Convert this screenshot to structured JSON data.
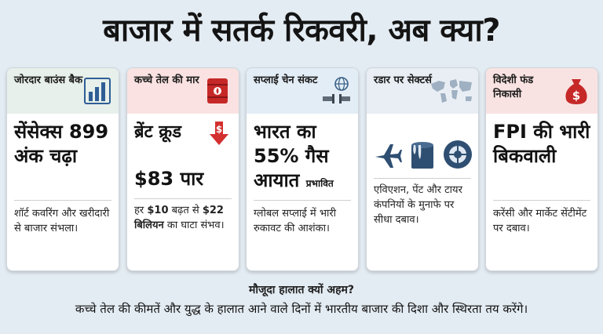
{
  "headline": "बाजार में सतर्क रिकवरी, अब क्या?",
  "cards": [
    {
      "header": "जोरदार बाउंस बैक",
      "header_color": "#e7f0ea",
      "icon": "bar-chart-icon",
      "main": "सेंसेक्स 899 अंक चढ़ा",
      "desc": "शॉर्ट कवरिंग और खरीदारी से बाजार संभला।"
    },
    {
      "header": "कच्चे तेल की मार",
      "header_color": "#f9e2e1",
      "icon": "oil-barrel-icon",
      "main_1": "ब्रेंट क्रूड",
      "main_2": "$83 पार",
      "desc_1": "हर ",
      "desc_bold_1": "$10",
      "desc_2": " बढ़त से ",
      "desc_bold_2": "$22 बिलियन",
      "desc_3": " का घाटा संभव।"
    },
    {
      "header": "सप्लाई चेन संकट",
      "header_color": "#e3edf6",
      "icon": "globe-pipe-icon",
      "main": "भारत का 55% गैस आयात",
      "main_suffix": "प्रभावित",
      "desc": "ग्लोबल सप्लाई में भारी रुकावट की आशंका।"
    },
    {
      "header": "रडार पर सेक्टर्स",
      "header_color": "#e9eef4",
      "icon": "world-map-icon",
      "icons": [
        "airplane-icon",
        "paint-bucket-icon",
        "tyre-icon"
      ],
      "desc": "एविएशन, पेंट और टायर कंपनियों के मुनाफे पर सीधा दबाव।"
    },
    {
      "header": "विदेशी फंड निकासी",
      "header_color": "#f9e3e2",
      "icon": "money-bag-icon",
      "main": "FPI की भारी बिकवाली",
      "desc": "करेंसी और मार्केट सेंटीमेंट पर दबाव।"
    }
  ],
  "footer": {
    "question": "मौजूदा हालात क्यों अहम?",
    "text": "कच्चे तेल की कीमतें और युद्ध के हालात आने वाले दिनों में भारतीय बाजार की दिशा और स्थिरता तय करेंगे।"
  }
}
